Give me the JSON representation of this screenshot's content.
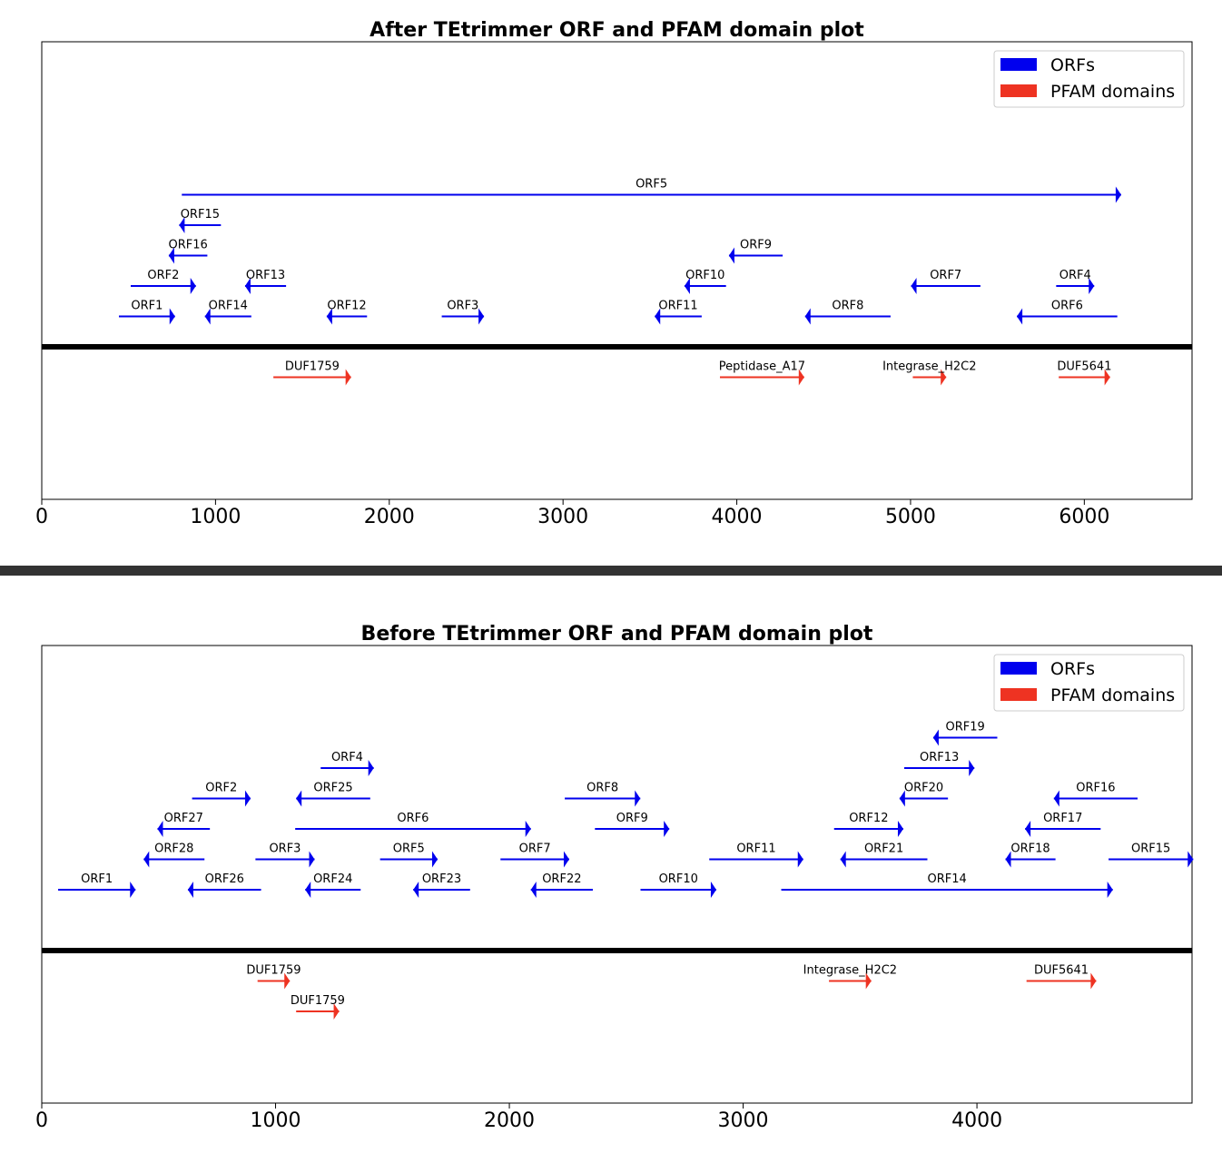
{
  "colors": {
    "orf": "#0000ee",
    "pfam": "#ee3322",
    "baseline": "#000000",
    "divider": "#333333"
  },
  "chart_data": [
    {
      "type": "orf-domain-plot",
      "title": "After TEtrimmer ORF and PFAM domain plot",
      "xlim": [
        0,
        6620
      ],
      "xticks": [
        0,
        1000,
        2000,
        3000,
        4000,
        5000,
        6000
      ],
      "legend": {
        "position": "top-right",
        "entries": [
          {
            "label": "ORFs",
            "color": "#0000ee"
          },
          {
            "label": "PFAM domains",
            "color": "#ee3322"
          }
        ]
      },
      "orfs": [
        {
          "name": "ORF5",
          "start": 806,
          "end": 6212,
          "strand": "+",
          "track": 5
        },
        {
          "name": "ORF15",
          "start": 791,
          "end": 1031,
          "strand": "-",
          "track": 4
        },
        {
          "name": "ORF16",
          "start": 731,
          "end": 953,
          "strand": "-",
          "track": 3
        },
        {
          "name": "ORF9",
          "start": 3955,
          "end": 4264,
          "strand": "-",
          "track": 3
        },
        {
          "name": "ORF2",
          "start": 512,
          "end": 887,
          "strand": "+",
          "track": 2
        },
        {
          "name": "ORF13",
          "start": 1170,
          "end": 1406,
          "strand": "-",
          "track": 2
        },
        {
          "name": "ORF10",
          "start": 3699,
          "end": 3938,
          "strand": "-",
          "track": 2
        },
        {
          "name": "ORF7",
          "start": 5003,
          "end": 5402,
          "strand": "-",
          "track": 2
        },
        {
          "name": "ORF4",
          "start": 5838,
          "end": 6057,
          "strand": "+",
          "track": 2
        },
        {
          "name": "ORF1",
          "start": 444,
          "end": 767,
          "strand": "+",
          "track": 1
        },
        {
          "name": "ORF14",
          "start": 939,
          "end": 1206,
          "strand": "-",
          "track": 1
        },
        {
          "name": "ORF12",
          "start": 1640,
          "end": 1872,
          "strand": "-",
          "track": 1
        },
        {
          "name": "ORF3",
          "start": 2302,
          "end": 2545,
          "strand": "+",
          "track": 1
        },
        {
          "name": "ORF11",
          "start": 3528,
          "end": 3798,
          "strand": "-",
          "track": 1
        },
        {
          "name": "ORF8",
          "start": 4393,
          "end": 4885,
          "strand": "-",
          "track": 1
        },
        {
          "name": "ORF6",
          "start": 5612,
          "end": 6190,
          "strand": "-",
          "track": 1
        }
      ],
      "pfam": [
        {
          "name": "DUF1759",
          "start": 1333,
          "end": 1780,
          "strand": "+",
          "track": 1
        },
        {
          "name": "Peptidase_A17",
          "start": 3903,
          "end": 4388,
          "strand": "+",
          "track": 1
        },
        {
          "name": "Integrase_H2C2",
          "start": 5013,
          "end": 5205,
          "strand": "+",
          "track": 1
        },
        {
          "name": "DUF5641",
          "start": 5853,
          "end": 6148,
          "strand": "+",
          "track": 1
        }
      ]
    },
    {
      "type": "orf-domain-plot",
      "title": "Before TEtrimmer ORF and PFAM domain plot",
      "xlim": [
        0,
        4920
      ],
      "xticks": [
        0,
        1000,
        2000,
        3000,
        4000
      ],
      "legend": {
        "position": "top-right",
        "entries": [
          {
            "label": "ORFs",
            "color": "#0000ee"
          },
          {
            "label": "PFAM domains",
            "color": "#ee3322"
          }
        ]
      },
      "orfs": [
        {
          "name": "ORF19",
          "start": 3813,
          "end": 4087,
          "strand": "-",
          "track": 7
        },
        {
          "name": "ORF4",
          "start": 1193,
          "end": 1420,
          "strand": "+",
          "track": 6
        },
        {
          "name": "ORF13",
          "start": 3689,
          "end": 3989,
          "strand": "+",
          "track": 6
        },
        {
          "name": "ORF2",
          "start": 643,
          "end": 893,
          "strand": "+",
          "track": 5
        },
        {
          "name": "ORF25",
          "start": 1088,
          "end": 1405,
          "strand": "-",
          "track": 5
        },
        {
          "name": "ORF8",
          "start": 2237,
          "end": 2560,
          "strand": "+",
          "track": 5
        },
        {
          "name": "ORF20",
          "start": 3669,
          "end": 3876,
          "strand": "-",
          "track": 5
        },
        {
          "name": "ORF16",
          "start": 4329,
          "end": 4687,
          "strand": "-",
          "track": 5
        },
        {
          "name": "ORF27",
          "start": 495,
          "end": 719,
          "strand": "-",
          "track": 4
        },
        {
          "name": "ORF6",
          "start": 1084,
          "end": 2092,
          "strand": "+",
          "track": 4
        },
        {
          "name": "ORF9",
          "start": 2366,
          "end": 2684,
          "strand": "+",
          "track": 4
        },
        {
          "name": "ORF12",
          "start": 3389,
          "end": 3685,
          "strand": "+",
          "track": 4
        },
        {
          "name": "ORF17",
          "start": 4206,
          "end": 4529,
          "strand": "-",
          "track": 4
        },
        {
          "name": "ORF28",
          "start": 436,
          "end": 696,
          "strand": "-",
          "track": 3
        },
        {
          "name": "ORF3",
          "start": 914,
          "end": 1167,
          "strand": "+",
          "track": 3
        },
        {
          "name": "ORF5",
          "start": 1447,
          "end": 1693,
          "strand": "+",
          "track": 3
        },
        {
          "name": "ORF7",
          "start": 1962,
          "end": 2256,
          "strand": "+",
          "track": 3
        },
        {
          "name": "ORF11",
          "start": 2855,
          "end": 3257,
          "strand": "+",
          "track": 3
        },
        {
          "name": "ORF21",
          "start": 3416,
          "end": 3788,
          "strand": "-",
          "track": 3
        },
        {
          "name": "ORF18",
          "start": 4122,
          "end": 4336,
          "strand": "-",
          "track": 3
        },
        {
          "name": "ORF15",
          "start": 4563,
          "end": 4925,
          "strand": "+",
          "track": 3
        },
        {
          "name": "ORF1",
          "start": 70,
          "end": 401,
          "strand": "+",
          "track": 2
        },
        {
          "name": "ORF26",
          "start": 625,
          "end": 938,
          "strand": "-",
          "track": 2
        },
        {
          "name": "ORF24",
          "start": 1127,
          "end": 1364,
          "strand": "-",
          "track": 2
        },
        {
          "name": "ORF23",
          "start": 1589,
          "end": 1832,
          "strand": "-",
          "track": 2
        },
        {
          "name": "ORF22",
          "start": 2092,
          "end": 2357,
          "strand": "-",
          "track": 2
        },
        {
          "name": "ORF10",
          "start": 2561,
          "end": 2885,
          "strand": "+",
          "track": 2
        },
        {
          "name": "ORF14",
          "start": 3163,
          "end": 4581,
          "strand": "+",
          "track": 2
        }
      ],
      "pfam": [
        {
          "name": "DUF1759",
          "start": 923,
          "end": 1061,
          "strand": "+",
          "track": 1
        },
        {
          "name": "DUF1759",
          "start": 1088,
          "end": 1272,
          "strand": "+",
          "track": 2
        },
        {
          "name": "Integrase_H2C2",
          "start": 3367,
          "end": 3548,
          "strand": "+",
          "track": 1
        },
        {
          "name": "DUF5641",
          "start": 4212,
          "end": 4510,
          "strand": "+",
          "track": 1
        }
      ]
    }
  ]
}
